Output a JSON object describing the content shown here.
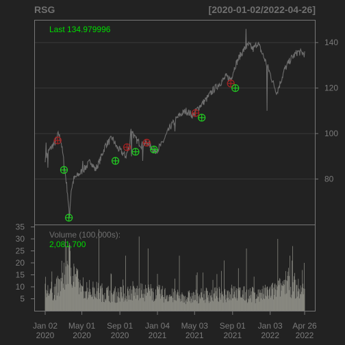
{
  "chart_data": {
    "type": "line",
    "symbol": "RSG",
    "date_range": "[2020-01-02/2022-04-26]",
    "last_label": "Last 134.979996",
    "volume_label": "Volume (100,000s):",
    "volume_value": "2,081,700",
    "price_axis": {
      "ticks": [
        80,
        100,
        120,
        140
      ],
      "ylim": [
        60,
        150
      ]
    },
    "volume_axis": {
      "ticks": [
        5,
        10,
        15,
        20,
        25,
        30,
        35
      ],
      "ylim": [
        0,
        36
      ]
    },
    "x_ticks": [
      {
        "line1": "Jan 02",
        "line2": "2020"
      },
      {
        "line1": "May 01",
        "line2": "2020"
      },
      {
        "line1": "Sep 01",
        "line2": "2020"
      },
      {
        "line1": "Jan 04",
        "line2": "2021"
      },
      {
        "line1": "May 03",
        "line2": "2021"
      },
      {
        "line1": "Sep 01",
        "line2": "2021"
      },
      {
        "line1": "Jan 03",
        "line2": "2022"
      },
      {
        "line1": "Apr 26",
        "line2": "2022"
      }
    ],
    "x_tick_index": [
      0,
      82,
      167,
      251,
      334,
      419,
      503,
      580
    ],
    "price_anchors": [
      [
        0,
        89
      ],
      [
        10,
        93
      ],
      [
        22,
        96
      ],
      [
        30,
        100
      ],
      [
        36,
        96
      ],
      [
        40,
        90
      ],
      [
        44,
        84
      ],
      [
        50,
        74
      ],
      [
        54,
        63
      ],
      [
        58,
        75
      ],
      [
        64,
        80
      ],
      [
        75,
        82
      ],
      [
        90,
        85
      ],
      [
        102,
        88
      ],
      [
        112,
        84
      ],
      [
        122,
        88
      ],
      [
        135,
        95
      ],
      [
        150,
        98
      ],
      [
        160,
        94
      ],
      [
        170,
        92
      ],
      [
        180,
        90
      ],
      [
        188,
        94
      ],
      [
        192,
        103
      ],
      [
        200,
        98
      ],
      [
        215,
        95
      ],
      [
        230,
        96
      ],
      [
        245,
        92
      ],
      [
        260,
        95
      ],
      [
        280,
        103
      ],
      [
        300,
        108
      ],
      [
        315,
        110
      ],
      [
        330,
        108
      ],
      [
        345,
        112
      ],
      [
        360,
        115
      ],
      [
        375,
        119
      ],
      [
        390,
        122
      ],
      [
        405,
        125
      ],
      [
        415,
        124
      ],
      [
        425,
        130
      ],
      [
        435,
        134
      ],
      [
        445,
        137
      ],
      [
        455,
        139
      ],
      [
        465,
        137
      ],
      [
        475,
        140
      ],
      [
        490,
        133
      ],
      [
        500,
        128
      ],
      [
        510,
        122
      ],
      [
        518,
        118
      ],
      [
        525,
        122
      ],
      [
        535,
        128
      ],
      [
        550,
        133
      ],
      [
        565,
        136
      ],
      [
        580,
        135
      ]
    ],
    "price_spikes": [
      [
        2,
        96
      ],
      [
        6,
        85
      ],
      [
        84,
        88
      ],
      [
        90,
        86
      ],
      [
        193,
        90
      ],
      [
        218,
        88
      ],
      [
        290,
        101
      ],
      [
        449,
        146
      ],
      [
        496,
        110
      ]
    ],
    "volume_anchors": [
      [
        0,
        8
      ],
      [
        20,
        9
      ],
      [
        40,
        12
      ],
      [
        50,
        22
      ],
      [
        60,
        19
      ],
      [
        75,
        11
      ],
      [
        100,
        9
      ],
      [
        130,
        8
      ],
      [
        160,
        7
      ],
      [
        190,
        8
      ],
      [
        210,
        8
      ],
      [
        240,
        8
      ],
      [
        270,
        7
      ],
      [
        300,
        6
      ],
      [
        330,
        6
      ],
      [
        360,
        7
      ],
      [
        390,
        7
      ],
      [
        420,
        8
      ],
      [
        450,
        7
      ],
      [
        480,
        7
      ],
      [
        500,
        8
      ],
      [
        520,
        9
      ],
      [
        540,
        13
      ],
      [
        560,
        10
      ],
      [
        580,
        8
      ]
    ],
    "volume_spikes": [
      [
        45,
        30
      ],
      [
        48,
        27
      ],
      [
        56,
        25
      ],
      [
        120,
        34
      ],
      [
        180,
        23
      ],
      [
        210,
        31
      ],
      [
        230,
        26
      ],
      [
        300,
        23
      ],
      [
        340,
        16
      ],
      [
        400,
        21
      ],
      [
        450,
        26
      ],
      [
        520,
        30
      ],
      [
        547,
        23
      ],
      [
        553,
        27
      ],
      [
        575,
        17
      ],
      [
        579,
        20
      ]
    ],
    "buy_signals": [
      {
        "date": "2020-03-19",
        "index": 53,
        "price": 63
      },
      {
        "date": "2020-03-03",
        "index": 42,
        "price": 84
      },
      {
        "date": "2020-08-14",
        "index": 157,
        "price": 88
      },
      {
        "date": "2020-10-19",
        "index": 202,
        "price": 92
      },
      {
        "date": "2020-12-15",
        "index": 243,
        "price": 93
      },
      {
        "date": "2021-05-26",
        "index": 350,
        "price": 107
      },
      {
        "date": "2021-09-10",
        "index": 425,
        "price": 120
      }
    ],
    "sell_signals": [
      {
        "date": "2020-02-04",
        "index": 28,
        "price": 97
      },
      {
        "date": "2020-09-23",
        "index": 183,
        "price": 94
      },
      {
        "date": "2020-11-24",
        "index": 227,
        "price": 96
      },
      {
        "date": "2021-05-04",
        "index": 336,
        "price": 109
      },
      {
        "date": "2021-08-30",
        "index": 415,
        "price": 122
      }
    ],
    "colors": {
      "background": "#222222",
      "price_line": "#6e6e6e",
      "volume_bar": "#8e8e86",
      "axis_text": "#7b7b7b",
      "frame": "#777777",
      "grid": "#3a3a3a",
      "buy": "#22cc22",
      "sell": "#aa2222",
      "last": "#00dd00"
    },
    "grid": true,
    "legend": "top-left"
  }
}
